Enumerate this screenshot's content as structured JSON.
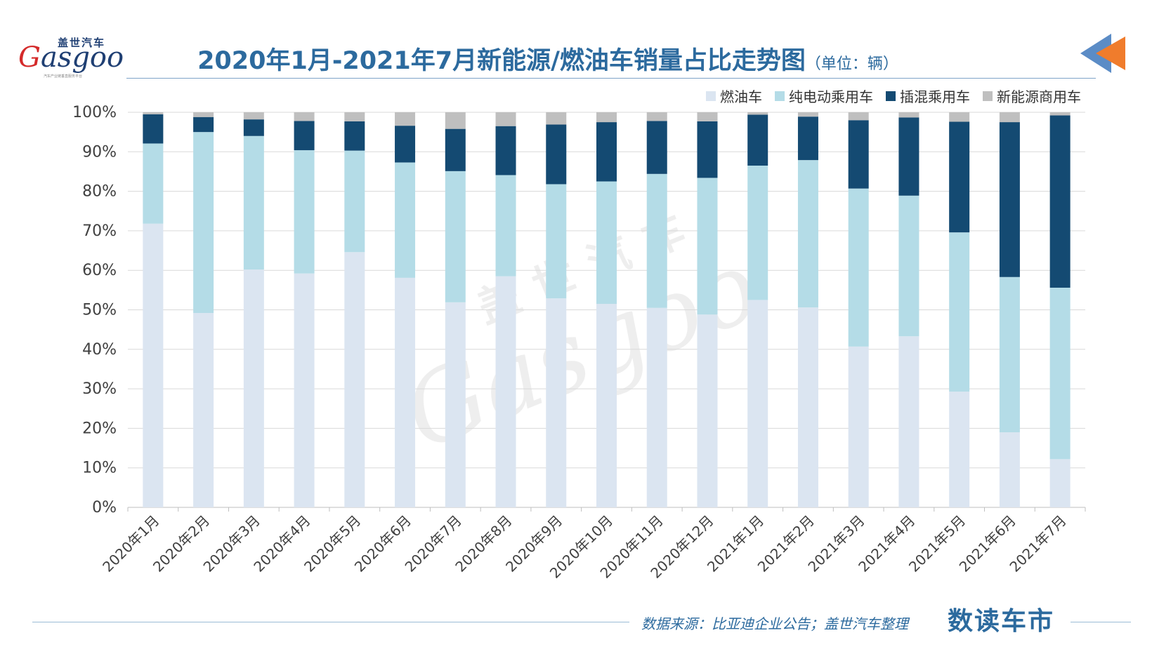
{
  "logo": {
    "cn": "盖世汽车",
    "en_first": "G",
    "en_rest": "asgoo",
    "sub": "汽车产业链垂直服务平台"
  },
  "header": {
    "title": "2020年1月-2021年7月新能源/燃油车销量占比走势图",
    "unit": "（单位：辆）"
  },
  "watermark": {
    "cn": "盖世汽车",
    "en": "Gasgoo"
  },
  "footer": {
    "source": "数据来源：比亚迪企业公告；盖世汽车整理",
    "brand": "数读车市"
  },
  "colors": {
    "title": "#2c6a9e",
    "arrow_blue": "#5b8cc6",
    "arrow_orange": "#f07c2c"
  },
  "chart_data": {
    "type": "bar",
    "stacked": true,
    "categories": [
      "2020年1月",
      "2020年2月",
      "2020年3月",
      "2020年4月",
      "2020年5月",
      "2020年6月",
      "2020年7月",
      "2020年8月",
      "2020年9月",
      "2020年10月",
      "2020年11月",
      "2020年12月",
      "2021年1月",
      "2021年2月",
      "2021年3月",
      "2021年4月",
      "2021年5月",
      "2021年6月",
      "2021年7月"
    ],
    "ylim": [
      0,
      100
    ],
    "yticks": [
      "0%",
      "10%",
      "20%",
      "30%",
      "40%",
      "50%",
      "60%",
      "70%",
      "80%",
      "90%",
      "100%"
    ],
    "grid": true,
    "legend_position": "top-right",
    "series": [
      {
        "name": "燃油车",
        "color": "#dbe5f1",
        "values": [
          71.8,
          49.2,
          60.2,
          59.2,
          64.6,
          58.1,
          51.9,
          58.5,
          52.9,
          51.5,
          50.5,
          48.8,
          52.5,
          50.6,
          40.7,
          43.3,
          29.3,
          19.0,
          12.2
        ]
      },
      {
        "name": "纯电动乘用车",
        "color": "#b4dce7",
        "values": [
          20.3,
          45.8,
          33.8,
          31.2,
          25.7,
          29.2,
          33.2,
          25.6,
          28.9,
          31.0,
          33.9,
          34.6,
          34.0,
          37.3,
          40.0,
          35.6,
          40.3,
          39.3,
          43.4
        ]
      },
      {
        "name": "插混乘用车",
        "color": "#144a72",
        "values": [
          7.4,
          3.8,
          4.2,
          7.4,
          7.4,
          9.3,
          10.7,
          12.4,
          15.1,
          15.0,
          13.4,
          14.3,
          12.9,
          11.0,
          17.3,
          19.8,
          28.0,
          39.2,
          43.6
        ]
      },
      {
        "name": "新能源商用车",
        "color": "#bfbfbf",
        "values": [
          0.5,
          1.2,
          1.8,
          2.2,
          2.3,
          3.4,
          4.2,
          3.5,
          3.1,
          2.5,
          2.2,
          2.3,
          0.6,
          1.1,
          2.0,
          1.3,
          2.4,
          2.5,
          0.8
        ]
      }
    ]
  }
}
